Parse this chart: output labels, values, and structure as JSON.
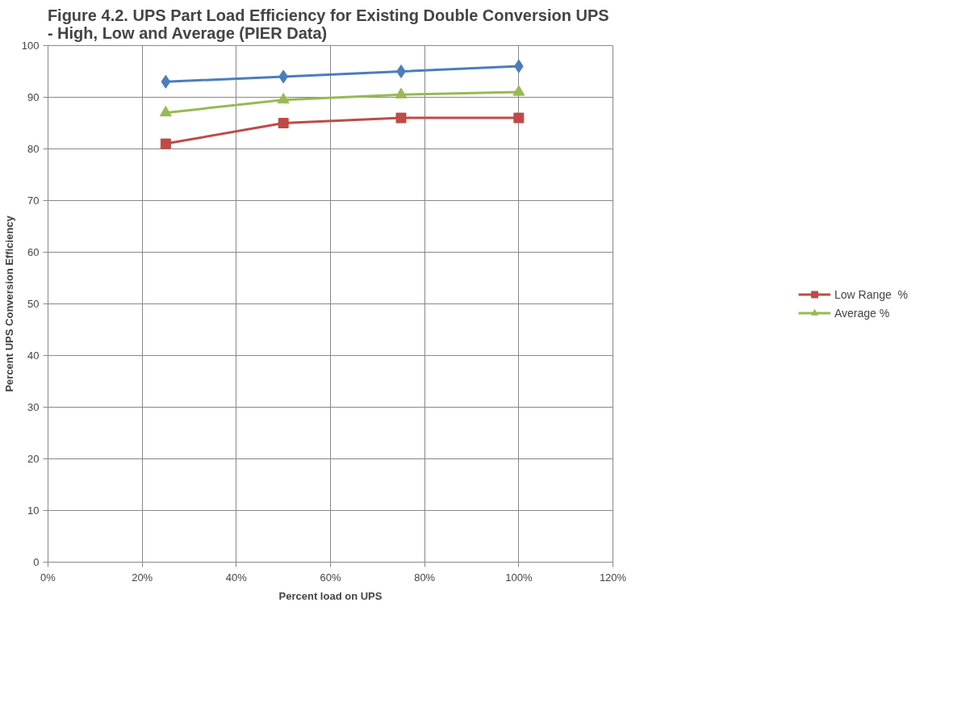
{
  "chart_data": {
    "type": "line",
    "title": "Figure 4.2.  UPS Part Load Efficiency for Existing Double Conversion UPS\n- High, Low and Average (PIER Data)",
    "xlabel": "Percent load on UPS",
    "ylabel": "Percent UPS Conversion Efficiency",
    "x": [
      25,
      50,
      75,
      100
    ],
    "series": [
      {
        "color": "#4a7ebb",
        "marker": "diamond",
        "values": [
          93,
          94,
          95,
          96
        ]
      },
      {
        "name": "Low Range  %",
        "color": "#be4b48",
        "marker": "square",
        "values": [
          81,
          85,
          86,
          86
        ]
      },
      {
        "name": "Average %",
        "color": "#98b954",
        "marker": "triangle",
        "values": [
          87,
          89.5,
          90.5,
          91
        ]
      }
    ],
    "xlim": [
      0,
      120
    ],
    "xticks": [
      {
        "value": 0,
        "label": "0%"
      },
      {
        "value": 20,
        "label": "20%"
      },
      {
        "value": 40,
        "label": "40%"
      },
      {
        "value": 60,
        "label": "60%"
      },
      {
        "value": 80,
        "label": "80%"
      },
      {
        "value": 100,
        "label": "100%"
      },
      {
        "value": 120,
        "label": "120%"
      }
    ],
    "ylim": [
      0,
      100
    ],
    "yticks": [
      0,
      10,
      20,
      30,
      40,
      50,
      60,
      70,
      80,
      90,
      100
    ],
    "grid": true,
    "legend": "right",
    "line_style": "solid"
  }
}
